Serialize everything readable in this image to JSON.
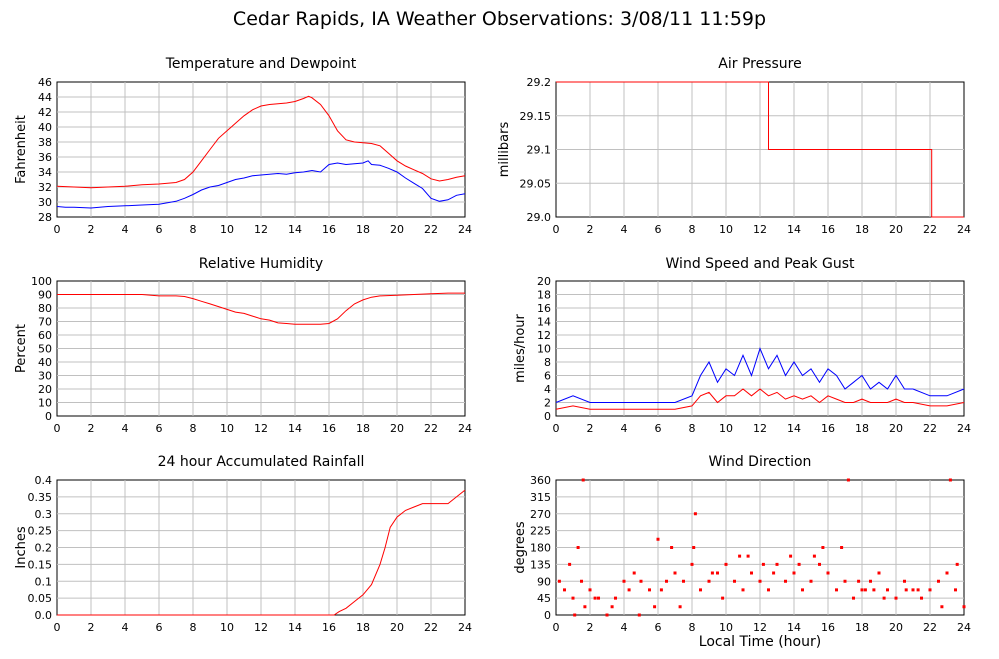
{
  "title": "Cedar Rapids, IA Weather Observations: 3/08/11 11:59p",
  "x_axis_title": "Local Time (hour)",
  "x_ticks": [
    "0",
    "2",
    "4",
    "6",
    "8",
    "10",
    "12",
    "14",
    "16",
    "18",
    "20",
    "22",
    "24"
  ],
  "colors": {
    "red": "#ff0000",
    "blue": "#0000ff",
    "grid": "#c0c0c0"
  },
  "chart_data": [
    {
      "id": "temp",
      "type": "line",
      "title": "Temperature and Dewpoint",
      "ylabel": "Fahrenheit",
      "xlim": [
        0,
        24
      ],
      "ylim": [
        28,
        46
      ],
      "yticks": [
        "28",
        "30",
        "32",
        "34",
        "36",
        "38",
        "40",
        "42",
        "44",
        "46"
      ],
      "series": [
        {
          "color": "#ff0000",
          "x": [
            0,
            1,
            2,
            3,
            4,
            5,
            6,
            7,
            7.5,
            8,
            8.5,
            9,
            9.5,
            10,
            10.5,
            11,
            11.5,
            12,
            12.5,
            13,
            13.5,
            14,
            14.5,
            14.8,
            15,
            15.5,
            16,
            16.5,
            17,
            17.5,
            18,
            18.5,
            19,
            19.5,
            20,
            20.5,
            21,
            21.5,
            22,
            22.5,
            23,
            23.5,
            24
          ],
          "y": [
            32.1,
            32,
            31.9,
            32,
            32.1,
            32.3,
            32.4,
            32.6,
            33,
            34,
            35.5,
            37,
            38.5,
            39.5,
            40.5,
            41.5,
            42.3,
            42.8,
            43,
            43.1,
            43.2,
            43.4,
            43.8,
            44.1,
            43.9,
            43,
            41.5,
            39.5,
            38.3,
            38,
            37.9,
            37.8,
            37.5,
            36.5,
            35.5,
            34.8,
            34.3,
            33.8,
            33.1,
            32.8,
            33,
            33.3,
            33.5
          ]
        },
        {
          "color": "#0000ff",
          "x": [
            0,
            0.5,
            1,
            2,
            3,
            4,
            5,
            6,
            7,
            7.5,
            8,
            8.5,
            9,
            9.5,
            10,
            10.5,
            11,
            11.5,
            12,
            12.5,
            13,
            13.5,
            14,
            14.5,
            15,
            15.5,
            16,
            16.5,
            17,
            17.5,
            18,
            18.3,
            18.5,
            19,
            19.5,
            20,
            20.5,
            21,
            21.5,
            22,
            22.5,
            23,
            23.5,
            24
          ],
          "y": [
            29.4,
            29.3,
            29.3,
            29.2,
            29.4,
            29.5,
            29.6,
            29.7,
            30.1,
            30.5,
            31,
            31.6,
            32,
            32.2,
            32.6,
            33,
            33.2,
            33.5,
            33.6,
            33.7,
            33.8,
            33.7,
            33.9,
            34,
            34.2,
            34,
            35,
            35.2,
            35,
            35.1,
            35.2,
            35.5,
            35,
            34.9,
            34.5,
            34,
            33.2,
            32.5,
            31.8,
            30.5,
            30.1,
            30.3,
            30.9,
            31.1
          ]
        }
      ]
    },
    {
      "id": "pres",
      "type": "line",
      "title": "Air Pressure",
      "ylabel": "millibars",
      "xlim": [
        0,
        24
      ],
      "ylim": [
        29.0,
        29.2
      ],
      "yticks": [
        "29.0",
        "29.05",
        "29.1",
        "29.15",
        "29.2"
      ],
      "series": [
        {
          "color": "#ff0000",
          "x": [
            0,
            12.5,
            12.5,
            22.1,
            22.1,
            24
          ],
          "y": [
            29.2,
            29.2,
            29.1,
            29.1,
            29.0,
            29.0
          ]
        }
      ]
    },
    {
      "id": "rh",
      "type": "line",
      "title": "Relative Humidity",
      "ylabel": "Percent",
      "xlim": [
        0,
        24
      ],
      "ylim": [
        0,
        100
      ],
      "yticks": [
        "0",
        "10",
        "20",
        "30",
        "40",
        "50",
        "60",
        "70",
        "80",
        "90",
        "100"
      ],
      "series": [
        {
          "color": "#ff0000",
          "x": [
            0,
            1,
            2,
            3,
            4,
            5,
            6,
            7,
            7.5,
            8,
            8.5,
            9,
            9.5,
            10,
            10.5,
            11,
            11.5,
            12,
            12.5,
            13,
            13.5,
            14,
            14.5,
            15,
            15.5,
            16,
            16.5,
            17,
            17.5,
            18,
            18.5,
            19,
            20,
            21,
            22,
            23,
            24
          ],
          "y": [
            90,
            90,
            90,
            90,
            90,
            90,
            89,
            89,
            88.5,
            87,
            85,
            83,
            81,
            79,
            77,
            76,
            74,
            72,
            71,
            69,
            68.5,
            68,
            68,
            68,
            68,
            68.5,
            72,
            78,
            83,
            86,
            88,
            89,
            89.5,
            90,
            90.5,
            91,
            91
          ]
        }
      ]
    },
    {
      "id": "wind",
      "type": "line",
      "title": "Wind Speed and Peak Gust",
      "ylabel": "miles/hour",
      "xlim": [
        0,
        24
      ],
      "ylim": [
        0,
        20
      ],
      "yticks": [
        "0",
        "2",
        "4",
        "6",
        "8",
        "10",
        "12",
        "14",
        "16",
        "18",
        "20"
      ],
      "series": [
        {
          "color": "#0000ff",
          "x": [
            0,
            1,
            2,
            3,
            4,
            5,
            6,
            7,
            8,
            8.5,
            9,
            9.5,
            10,
            10.5,
            11,
            11.5,
            12,
            12.5,
            13,
            13.5,
            14,
            14.5,
            15,
            15.5,
            16,
            16.5,
            17,
            17.5,
            18,
            18.5,
            19,
            19.5,
            20,
            20.5,
            21,
            22,
            23,
            24
          ],
          "y": [
            2,
            3,
            2,
            2,
            2,
            2,
            2,
            2,
            3,
            6,
            8,
            5,
            7,
            6,
            9,
            6,
            10,
            7,
            9,
            6,
            8,
            6,
            7,
            5,
            7,
            6,
            4,
            5,
            6,
            4,
            5,
            4,
            6,
            4,
            4,
            3,
            3,
            4
          ]
        },
        {
          "color": "#ff0000",
          "x": [
            0,
            1,
            2,
            3,
            4,
            5,
            6,
            7,
            8,
            8.5,
            9,
            9.5,
            10,
            10.5,
            11,
            11.5,
            12,
            12.5,
            13,
            13.5,
            14,
            14.5,
            15,
            15.5,
            16,
            16.5,
            17,
            17.5,
            18,
            18.5,
            19,
            19.5,
            20,
            20.5,
            21,
            22,
            23,
            24
          ],
          "y": [
            1,
            1.5,
            1,
            1,
            1,
            1,
            1,
            1,
            1.5,
            3,
            3.5,
            2,
            3,
            3,
            4,
            3,
            4,
            3,
            3.5,
            2.5,
            3,
            2.5,
            3,
            2,
            3,
            2.5,
            2,
            2,
            2.5,
            2,
            2,
            2,
            2.5,
            2,
            2,
            1.5,
            1.5,
            2
          ]
        }
      ]
    },
    {
      "id": "rain",
      "type": "line",
      "title": "24 hour Accumulated Rainfall",
      "ylabel": "Inches",
      "xlim": [
        0,
        24
      ],
      "ylim": [
        0,
        0.4
      ],
      "yticks": [
        "0.0",
        "0.05",
        "0.1",
        "0.15",
        "0.2",
        "0.25",
        "0.3",
        "0.35",
        "0.4"
      ],
      "series": [
        {
          "color": "#ff0000",
          "x": [
            0,
            16.3,
            16.6,
            17,
            17.5,
            18,
            18.5,
            19,
            19.3,
            19.6,
            20,
            20.5,
            21,
            21.5,
            22,
            22.5,
            23,
            23.5,
            24
          ],
          "y": [
            0,
            0,
            0.01,
            0.02,
            0.04,
            0.06,
            0.09,
            0.15,
            0.2,
            0.26,
            0.29,
            0.31,
            0.32,
            0.33,
            0.33,
            0.33,
            0.33,
            0.35,
            0.37
          ]
        }
      ]
    },
    {
      "id": "dir",
      "type": "scatter",
      "title": "Wind Direction",
      "ylabel": "degrees",
      "xlim": [
        0,
        24
      ],
      "ylim": [
        0,
        360
      ],
      "yticks": [
        "0",
        "45",
        "90",
        "135",
        "180",
        "225",
        "270",
        "315",
        "360"
      ],
      "series": [
        {
          "color": "#ff0000",
          "x": [
            0.2,
            0.5,
            1,
            1.3,
            1.5,
            1.7,
            2,
            2.5,
            3,
            3.5,
            4,
            4.3,
            4.6,
            5,
            5.5,
            6,
            6.2,
            6.5,
            7,
            7.5,
            8,
            8.2,
            8.5,
            9,
            9.5,
            10,
            10.5,
            11,
            11.5,
            12,
            12.5,
            13,
            13.5,
            14,
            14.5,
            15,
            15.5,
            16,
            16.5,
            17,
            17.5,
            18,
            18.5,
            19,
            19.5,
            20,
            20.5,
            21,
            21.5,
            22,
            22.5,
            23,
            23.5,
            24,
            0.8,
            1.1,
            1.6,
            2.3,
            5.8,
            6.8,
            8.1,
            9.2,
            10.8,
            12.2,
            13.8,
            15.7,
            17.2,
            17.8,
            18.7,
            20.6,
            23.2,
            23.6,
            3.3,
            4.9,
            7.3,
            9.8,
            11.3,
            12.8,
            14.3,
            15.2,
            16.8,
            18.2,
            19.3,
            21.3,
            22.7
          ],
          "y": [
            90,
            67,
            45,
            180,
            90,
            22,
            67,
            45,
            0,
            45,
            90,
            67,
            112,
            90,
            67,
            202,
            67,
            90,
            112,
            90,
            135,
            270,
            67,
            90,
            112,
            135,
            90,
            67,
            112,
            90,
            67,
            135,
            90,
            112,
            67,
            90,
            135,
            112,
            67,
            90,
            45,
            67,
            90,
            112,
            67,
            45,
            90,
            67,
            45,
            67,
            90,
            112,
            67,
            22,
            135,
            0,
            360,
            45,
            22,
            180,
            180,
            112,
            157,
            135,
            157,
            180,
            360,
            90,
            67,
            67,
            360,
            135,
            22,
            0,
            22,
            45,
            157,
            112,
            135,
            157,
            180,
            67,
            45,
            67,
            22
          ]
        }
      ]
    }
  ]
}
